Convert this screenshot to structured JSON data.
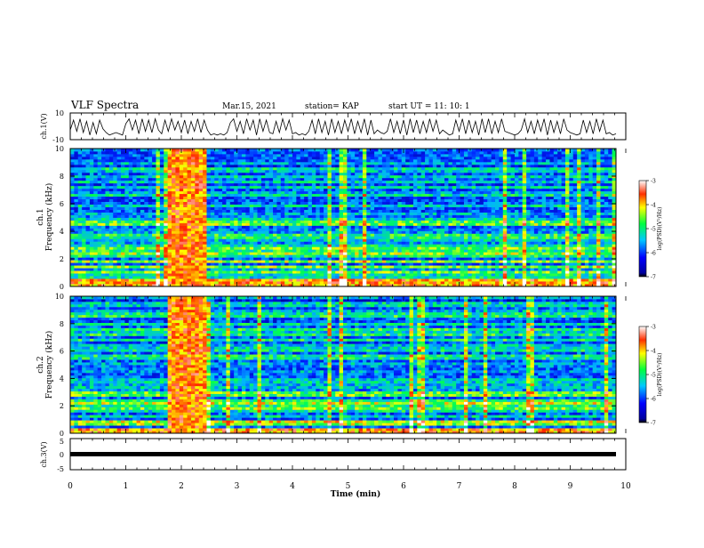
{
  "header": {
    "title": "VLF Spectra",
    "date": "Mar.15, 2021",
    "station": "station= KAP",
    "start": "start  UT =   11: 10: 1"
  },
  "chart_data": [
    {
      "type": "line",
      "ylabel": "ch.1(V)",
      "ylim": [
        -10,
        10
      ],
      "yticks": [
        "10",
        "-10"
      ],
      "xlim": [
        0,
        10
      ],
      "series": [
        {
          "values": [
            -3,
            5,
            -4,
            6,
            -5,
            4,
            -7,
            3,
            -6,
            5,
            -2,
            -5,
            -7,
            -6,
            -5,
            -6,
            -7,
            2,
            6,
            -3,
            5,
            -6,
            6,
            -4,
            5,
            -5,
            6,
            -3,
            -6,
            5,
            -4,
            6,
            -3,
            4,
            -5,
            5,
            -6,
            4,
            -4,
            6,
            -5,
            5,
            -3,
            -7,
            -6,
            -7,
            -6,
            -7,
            -5,
            3,
            6,
            -4,
            4,
            -6,
            6,
            -3,
            5,
            -7,
            6,
            -4,
            5,
            -5,
            -6,
            4,
            -5,
            6,
            -3,
            5,
            -6,
            -5,
            -7,
            -6,
            -7,
            -4,
            5,
            -6,
            6,
            -5,
            4,
            -7,
            6,
            -5,
            4,
            -6,
            5,
            -4,
            6,
            -6,
            4,
            -5,
            6,
            -7,
            5,
            -6,
            -3,
            -5,
            -6,
            -4,
            6,
            -5,
            4,
            -6,
            5,
            -7,
            6,
            -5,
            5,
            -6,
            4,
            -5,
            6,
            -4,
            5,
            -6,
            -3,
            -5,
            -7,
            -6,
            5,
            -4,
            6,
            -6,
            5,
            -5,
            4,
            -7,
            6,
            -5,
            6,
            -6,
            4,
            -5,
            6,
            -4,
            -5,
            -6,
            -7,
            -6,
            -3,
            6,
            -5,
            4,
            -6,
            5,
            -4,
            6,
            -7,
            5,
            -5,
            4,
            -6,
            6,
            -3,
            -5,
            -6,
            -7,
            -6,
            5,
            -5,
            4,
            -6,
            6,
            -4,
            5,
            -6,
            -5,
            -7,
            -6
          ]
        }
      ]
    },
    {
      "type": "heatmap",
      "ylabel_line1": "ch.1",
      "ylabel_line2": "Frequency (kHz)",
      "ylim": [
        0,
        10
      ],
      "yticks": [
        "0",
        "2",
        "4",
        "6",
        "8",
        "10"
      ],
      "xlim": [
        0,
        10
      ],
      "colorbar": {
        "label": "log(PSD)(V²/Hz)",
        "ticks": [
          "-3",
          "-4",
          "-5",
          "-6",
          "-7"
        ],
        "range": [
          -7,
          -3
        ]
      }
    },
    {
      "type": "heatmap",
      "ylabel_line1": "ch.2",
      "ylabel_line2": "Frequency (kHz)",
      "ylim": [
        0,
        10
      ],
      "yticks": [
        "0",
        "2",
        "4",
        "6",
        "8",
        "10"
      ],
      "xlim": [
        0,
        10
      ],
      "colorbar": {
        "label": "log(PSD)(V²/Hz)",
        "ticks": [
          "-3",
          "-4",
          "-5",
          "-6",
          "-7"
        ],
        "range": [
          -7,
          -3
        ]
      }
    },
    {
      "type": "line",
      "ylabel": "ch.3(V)",
      "ylim": [
        -5,
        5
      ],
      "yticks": [
        "5",
        "0",
        "-5"
      ],
      "xlim": [
        0,
        10
      ],
      "series": [
        {
          "x": [
            0,
            9.8
          ],
          "values": [
            0,
            0
          ]
        }
      ]
    }
  ],
  "xaxis": {
    "label": "Time (min)",
    "ticks": [
      "0",
      "1",
      "2",
      "3",
      "4",
      "5",
      "6",
      "7",
      "8",
      "9",
      "10"
    ]
  }
}
